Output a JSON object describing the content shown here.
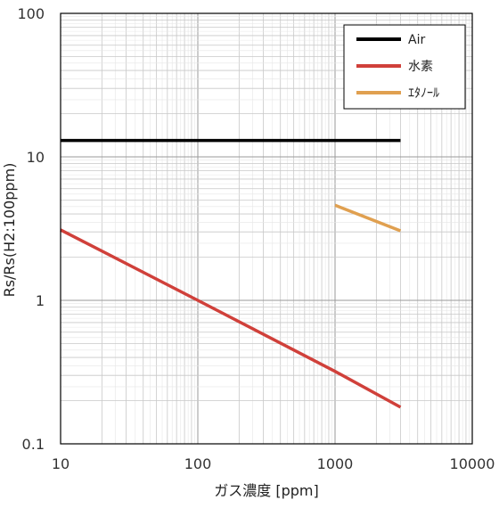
{
  "chart_data": {
    "type": "line",
    "xlabel": "ガス濃度 [ppm]",
    "ylabel": "Rs/Rs(H2:100ppm)",
    "xscale": "log",
    "yscale": "log",
    "xlim": [
      10,
      10000
    ],
    "ylim": [
      0.1,
      100
    ],
    "xticks": [
      "10",
      "100",
      "1000",
      "10000"
    ],
    "yticks": [
      "0.1",
      "1",
      "10",
      "100"
    ],
    "grid": true,
    "legend_position": "top-right",
    "series": [
      {
        "name": "Air",
        "color": "#000000",
        "x": [
          10,
          3000
        ],
        "y": [
          13,
          13
        ]
      },
      {
        "name": "水素",
        "color": "#d0403a",
        "x": [
          10,
          100,
          1000,
          3000
        ],
        "y": [
          3.1,
          1.0,
          0.32,
          0.18
        ]
      },
      {
        "name": "ｴﾀﾉｰﾙ",
        "color": "#e0a050",
        "x": [
          1000,
          3000
        ],
        "y": [
          4.6,
          3.05
        ]
      }
    ]
  }
}
